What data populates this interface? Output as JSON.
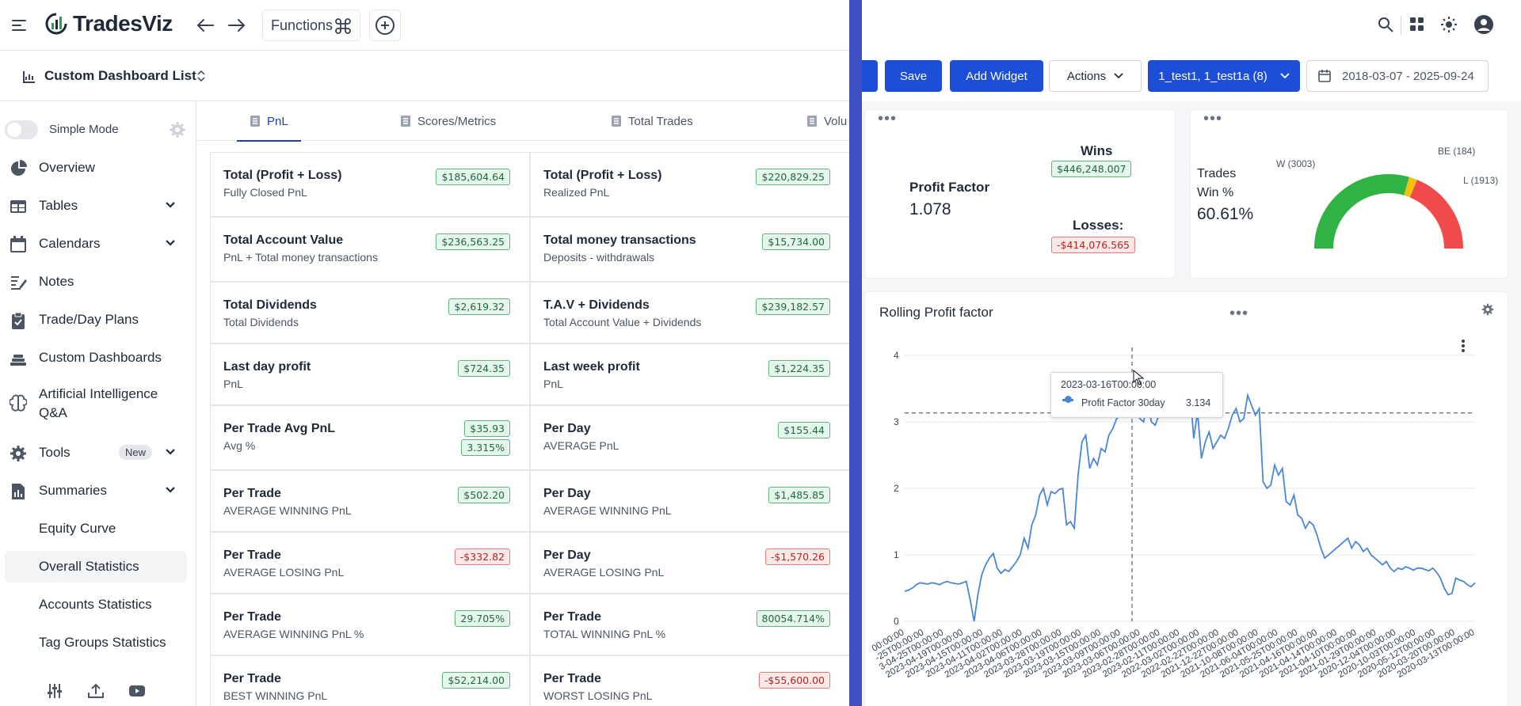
{
  "app": {
    "logo": "TradesViz",
    "functions_label": "Functions"
  },
  "dashboard": {
    "title": "Custom Dashboard List"
  },
  "sidebar": {
    "simple_mode": "Simple Mode",
    "items": [
      {
        "label": "Overview"
      },
      {
        "label": "Tables"
      },
      {
        "label": "Calendars"
      },
      {
        "label": "Notes"
      },
      {
        "label": "Trade/Day Plans"
      },
      {
        "label": "Custom Dashboards"
      },
      {
        "label": "Artificial Intelligence"
      },
      {
        "label": "Q&A"
      },
      {
        "label": "Tools",
        "badge": "New"
      },
      {
        "label": "Summaries"
      }
    ],
    "sub_items": [
      {
        "label": "Equity Curve"
      },
      {
        "label": "Overall Statistics"
      },
      {
        "label": "Accounts Statistics"
      },
      {
        "label": "Tag Groups Statistics"
      }
    ]
  },
  "tabs": [
    {
      "label": "PnL"
    },
    {
      "label": "Scores/Metrics"
    },
    {
      "label": "Total Trades"
    },
    {
      "label": "Volu"
    }
  ],
  "metrics": [
    {
      "title": "Total (Profit + Loss)",
      "sub": "Fully Closed PnL",
      "badges": [
        {
          "v": "$185,604.64",
          "t": "pos"
        }
      ]
    },
    {
      "title": "Total (Profit + Loss)",
      "sub": "Realized PnL",
      "badges": [
        {
          "v": "$220,829.25",
          "t": "pos"
        }
      ]
    },
    {
      "title": "Total Account Value",
      "sub": "PnL + Total money transactions",
      "badges": [
        {
          "v": "$236,563.25",
          "t": "pos"
        }
      ]
    },
    {
      "title": "Total money transactions",
      "sub": "Deposits - withdrawals",
      "badges": [
        {
          "v": "$15,734.00",
          "t": "pos"
        }
      ]
    },
    {
      "title": "Total Dividends",
      "sub": "Total Dividends",
      "badges": [
        {
          "v": "$2,619.32",
          "t": "pos"
        }
      ]
    },
    {
      "title": "T.A.V + Dividends",
      "sub": "Total Account Value + Dividends",
      "badges": [
        {
          "v": "$239,182.57",
          "t": "pos"
        }
      ]
    },
    {
      "title": "Last day profit",
      "sub": "PnL",
      "badges": [
        {
          "v": "$724.35",
          "t": "pos"
        }
      ]
    },
    {
      "title": "Last week profit",
      "sub": "PnL",
      "badges": [
        {
          "v": "$1,224.35",
          "t": "pos"
        }
      ]
    },
    {
      "title": "Per Trade Avg PnL",
      "sub": "Avg %",
      "badges": [
        {
          "v": "$35.93",
          "t": "pos"
        },
        {
          "v": "3.315%",
          "t": "pos"
        }
      ]
    },
    {
      "title": "Per Day",
      "sub": "AVERAGE PnL",
      "badges": [
        {
          "v": "$155.44",
          "t": "pos"
        }
      ]
    },
    {
      "title": "Per Trade",
      "sub": "AVERAGE WINNING PnL",
      "badges": [
        {
          "v": "$502.20",
          "t": "pos"
        }
      ]
    },
    {
      "title": "Per Day",
      "sub": "AVERAGE WINNING PnL",
      "badges": [
        {
          "v": "$1,485.85",
          "t": "pos"
        }
      ]
    },
    {
      "title": "Per Trade",
      "sub": "AVERAGE LOSING PnL",
      "badges": [
        {
          "v": "-$332.82",
          "t": "neg"
        }
      ]
    },
    {
      "title": "Per Day",
      "sub": "AVERAGE LOSING PnL",
      "badges": [
        {
          "v": "-$1,570.26",
          "t": "neg"
        }
      ]
    },
    {
      "title": "Per Trade",
      "sub": "AVERAGE WINNING PnL %",
      "badges": [
        {
          "v": "29.705%",
          "t": "pos"
        }
      ]
    },
    {
      "title": "Per Trade",
      "sub": "TOTAL WINNING PnL %",
      "badges": [
        {
          "v": "80054.714%",
          "t": "pos"
        }
      ]
    },
    {
      "title": "Per Trade",
      "sub": "BEST WINNING PnL",
      "badges": [
        {
          "v": "$52,214.00",
          "t": "pos"
        }
      ]
    },
    {
      "title": "Per Trade",
      "sub": "WORST LOSING PnL",
      "badges": [
        {
          "v": "-$55,600.00",
          "t": "neg"
        }
      ]
    }
  ],
  "toolbar": {
    "save": "Save",
    "add_widget": "Add Widget",
    "actions": "Actions",
    "accounts": "1_test1, 1_test1a (8)",
    "date_range": "2018-03-07 - 2025-09-24"
  },
  "profit_factor": {
    "label": "Profit Factor",
    "value": "1.078",
    "wins_label": "Wins",
    "wins_value": "$446,248.007",
    "losses_label": "Losses:",
    "losses_value": "-$414,076.565"
  },
  "win_rate": {
    "label1": "Trades",
    "label2": "Win %",
    "value": "60.61%",
    "w_label": "W (3003)",
    "be_label": "BE (184)",
    "l_label": "L (1913)",
    "w": 3003,
    "be": 184,
    "l": 1913,
    "colors": {
      "w": "#2fb344",
      "be": "#f2c20e",
      "l": "#f04a4a"
    }
  },
  "rolling": {
    "title": "Rolling Profit factor",
    "tooltip_date": "2023-03-16T00:00:00",
    "tooltip_series": "Profit Factor 30day",
    "tooltip_value": "3.134"
  },
  "chart_data": {
    "type": "line",
    "title": "Rolling Profit factor",
    "series": [
      {
        "name": "Profit Factor 30day"
      }
    ],
    "ylim": [
      0,
      4
    ],
    "yticks": [
      "0",
      "1",
      "2",
      "3",
      "4"
    ],
    "reference_line": 3.134,
    "xtick_labels": [
      "00:00:00",
      "-25T00:00:00",
      "3-04-25T00:00:00",
      "2023-04-19T00:00:00",
      "2023-04-15T00:00:00",
      "2023-04-11T00:00:00",
      "2023-04-02T00:00:00",
      "2023-04-06T00:00:00",
      "2023-03-28T00:00:00",
      "2023-03-19T00:00:00",
      "2023-03-15T00:00:00",
      "2023-03-09T00:00:00",
      "2023-03-06T00:00:00",
      "2023-02-28T00:00:00",
      "2023-02-11T00:00:00",
      "2022-03-02T00:00:00",
      "2022-02-22T00:00:00",
      "2021-12-22T00:00:00",
      "2021-10-08T00:00:00",
      "2021-06-04T00:00:00",
      "2021-05-25T00:00:00",
      "2021-04-16T00:00:00",
      "2021-04-14T00:00:00",
      "2021-04-10T00:00:00",
      "2021-01-29T00:00:00",
      "2020-12-04T00:00:00",
      "2020-10-03T00:00:00",
      "2020-05-12T00:00:00",
      "2020-03-20T00:00:00",
      "2020-03-13T00:00:00"
    ],
    "values": [
      0.45,
      0.47,
      0.5,
      0.55,
      0.58,
      0.57,
      0.56,
      0.58,
      0.57,
      0.55,
      0.58,
      0.6,
      0.58,
      0.57,
      0.56,
      0.58,
      0.6,
      0.32,
      0.0,
      0.4,
      0.7,
      0.85,
      0.95,
      1.02,
      0.8,
      0.72,
      0.78,
      0.75,
      0.82,
      0.9,
      1.0,
      1.25,
      1.1,
      1.45,
      1.6,
      1.9,
      2.0,
      1.75,
      1.95,
      1.92,
      1.98,
      2.0,
      1.45,
      1.5,
      1.4,
      2.2,
      2.7,
      2.8,
      2.3,
      2.45,
      2.35,
      2.6,
      2.55,
      2.8,
      2.9,
      3.05,
      3.1,
      3.134,
      3.3,
      3.5,
      3.2,
      3.05,
      3.0,
      3.3,
      3.0,
      2.95,
      3.1,
      3.25,
      3.3,
      3.15,
      3.2,
      3.3,
      3.4,
      3.2,
      3.5,
      2.75,
      3.15,
      2.45,
      2.7,
      2.85,
      2.6,
      2.7,
      2.8,
      2.75,
      2.9,
      3.1,
      3.2,
      3.0,
      3.05,
      3.4,
      3.25,
      3.1,
      3.2,
      2.1,
      2.0,
      2.05,
      2.35,
      2.2,
      2.3,
      1.8,
      1.75,
      1.9,
      1.6,
      1.55,
      1.4,
      1.5,
      1.45,
      1.3,
      1.1,
      0.95,
      1.0,
      1.05,
      1.1,
      1.15,
      1.2,
      1.25,
      1.1,
      1.2,
      1.15,
      1.05,
      1.1,
      1.0,
      0.95,
      0.9,
      0.85,
      0.9,
      0.8,
      0.75,
      0.8,
      0.78,
      0.82,
      0.8,
      0.77,
      0.8,
      0.8,
      0.78,
      0.76,
      0.8,
      0.74,
      0.65,
      0.5,
      0.4,
      0.42,
      0.65,
      0.62,
      0.6,
      0.55,
      0.52,
      0.58
    ]
  }
}
